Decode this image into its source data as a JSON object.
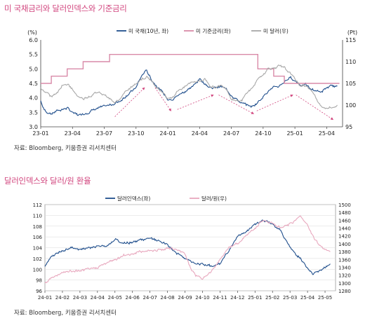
{
  "chart_data": [
    {
      "type": "line",
      "title": "미 국채금리와 달러인덱스와 기준금리",
      "source": "자료: Bloomberg, 키움증권 리서치센터",
      "y_left_unit": "(%)",
      "y_right_unit": "(Pt)",
      "y_left_ticks": [
        "6.0",
        "5.5",
        "5.0",
        "4.5",
        "4.0",
        "3.5",
        "3.0"
      ],
      "y_right_ticks": [
        "115",
        "110",
        "105",
        "100",
        "95"
      ],
      "ylim_left": [
        3.0,
        6.0
      ],
      "ylim_right": [
        95,
        115
      ],
      "x_ticks": [
        "23-01",
        "23-04",
        "23-07",
        "23-10",
        "24-01",
        "24-04",
        "24-07",
        "24-10",
        "25-01",
        "25-04"
      ],
      "xlim": [
        0,
        28.5
      ],
      "series": [
        {
          "name": "미 국채(10년, 좌)",
          "axis": "left",
          "color": "#1f4e8c",
          "style": "noisy",
          "x": [
            0,
            0.3,
            0.6,
            1,
            1.5,
            2,
            2.5,
            3,
            3.5,
            4,
            4.5,
            5,
            5.5,
            6,
            6.5,
            7,
            7.5,
            8,
            8.5,
            9,
            9.3,
            9.7,
            10,
            10.5,
            11,
            11.5,
            12,
            12.5,
            13,
            13.5,
            14,
            14.5,
            15,
            15.5,
            16,
            16.5,
            17,
            17.5,
            18,
            18.5,
            19,
            19.5,
            20,
            20.5,
            21,
            21.5,
            22,
            22.5,
            23,
            23.5,
            24,
            24.5,
            25,
            25.5,
            26,
            26.5,
            27,
            27.5,
            28
          ],
          "y": [
            3.9,
            3.6,
            3.5,
            3.45,
            3.55,
            3.6,
            3.65,
            3.5,
            3.4,
            3.45,
            3.5,
            3.6,
            3.65,
            3.7,
            3.75,
            3.8,
            3.9,
            4.05,
            4.2,
            4.35,
            4.6,
            4.85,
            4.95,
            4.6,
            4.4,
            4.2,
            3.95,
            3.95,
            4.1,
            4.2,
            4.3,
            4.45,
            4.65,
            4.5,
            4.35,
            4.35,
            4.4,
            4.3,
            4.1,
            3.95,
            3.8,
            3.75,
            3.7,
            3.85,
            4.05,
            4.25,
            4.35,
            4.4,
            4.55,
            4.7,
            4.6,
            4.45,
            4.45,
            4.3,
            4.25,
            4.2,
            4.35,
            4.4,
            4.4
          ]
        },
        {
          "name": "미 기준금리(좌)",
          "axis": "left",
          "color": "#d98aa8",
          "style": "step",
          "x": [
            0,
            1,
            1,
            2.5,
            2.5,
            4,
            4,
            6.5,
            6.5,
            20.5,
            20.5,
            22,
            22,
            23,
            23,
            28.2
          ],
          "y": [
            4.5,
            4.5,
            4.75,
            4.75,
            5.0,
            5.0,
            5.25,
            5.25,
            5.5,
            5.5,
            5.0,
            5.0,
            4.75,
            4.75,
            4.5,
            4.5
          ]
        },
        {
          "name": "미 달러(우)",
          "axis": "right",
          "color": "#a8a8a8",
          "style": "noisy",
          "x": [
            0,
            0.5,
            1,
            1.5,
            2,
            2.5,
            3,
            3.5,
            4,
            4.5,
            5,
            5.5,
            6,
            6.5,
            7,
            7.5,
            8,
            8.5,
            9,
            9.5,
            10,
            10.5,
            11,
            11.5,
            12,
            12.5,
            13,
            13.5,
            14,
            14.5,
            15,
            15.5,
            16,
            16.5,
            17,
            17.5,
            18,
            18.5,
            19,
            19.5,
            20,
            20.5,
            21,
            21.5,
            22,
            22.5,
            23,
            23.5,
            24,
            24.5,
            25,
            25.5,
            26,
            26.5,
            27,
            27.5,
            28
          ],
          "y": [
            104,
            103,
            102,
            102.5,
            104.5,
            105,
            103.5,
            102,
            101.5,
            102,
            102.5,
            103,
            102.5,
            101.5,
            100.5,
            101.5,
            103,
            104,
            105,
            106,
            106.5,
            105.5,
            104,
            103,
            101.5,
            102,
            103.5,
            104,
            105,
            105.5,
            105.5,
            106,
            104.5,
            104,
            104.5,
            104,
            101.5,
            101,
            101,
            103,
            104,
            106,
            107,
            108.5,
            108.5,
            109,
            108.5,
            107.5,
            106,
            104.5,
            104.5,
            103.5,
            101.5,
            99.8,
            99.2,
            99.5,
            100
          ]
        }
      ],
      "annotations": {
        "arrows_color": "#d2477f",
        "arrows": [
          {
            "x1": 7.0,
            "y1": 3.35,
            "x2": 9.8,
            "y2": 4.35
          },
          {
            "x1": 10.8,
            "y1": 4.35,
            "x2": 12.3,
            "y2": 3.55
          },
          {
            "x1": 12.9,
            "y1": 3.6,
            "x2": 16.3,
            "y2": 4.1
          },
          {
            "x1": 16.8,
            "y1": 4.1,
            "x2": 20.1,
            "y2": 3.45
          },
          {
            "x1": 20.4,
            "y1": 3.55,
            "x2": 23.8,
            "y2": 4.1
          },
          {
            "x1": 24.1,
            "y1": 4.1,
            "x2": 27.6,
            "y2": 3.25
          }
        ]
      }
    },
    {
      "type": "line",
      "title": "달러인덱스와 달러/원 환율",
      "source": "자료: Bloomberg, 키움증권 리서치센터",
      "y_left_ticks": [
        "112",
        "110",
        "108",
        "106",
        "104",
        "102",
        "100",
        "98",
        "96"
      ],
      "y_right_ticks": [
        "1500",
        "1480",
        "1460",
        "1440",
        "1420",
        "1400",
        "1380",
        "1360",
        "1340",
        "1320",
        "1300",
        "1280"
      ],
      "ylim_left": [
        96,
        112
      ],
      "ylim_right": [
        1280,
        1500
      ],
      "x_ticks": [
        "24-01",
        "24-02",
        "24-03",
        "24-04",
        "24-05",
        "24-06",
        "24-07",
        "24-08",
        "24-09",
        "24-10",
        "24-11",
        "24-12",
        "25-01",
        "25-02",
        "25-03",
        "25-04",
        "25-05"
      ],
      "xlim": [
        0,
        16.6
      ],
      "series": [
        {
          "name": "달러인덱스(좌)",
          "axis": "left",
          "color": "#1f4e8c",
          "style": "noisy",
          "x": [
            0,
            0.3,
            0.6,
            1,
            1.5,
            2,
            2.5,
            3,
            3.5,
            4,
            4.5,
            5,
            5.5,
            6,
            6.5,
            7,
            7.5,
            8,
            8.3,
            8.6,
            9,
            9.5,
            10,
            10.5,
            11,
            11.5,
            12,
            12.5,
            13,
            13.5,
            14,
            14.3,
            14.6,
            15,
            15.3,
            15.6,
            16,
            16.3
          ],
          "y": [
            100.5,
            102,
            102.8,
            103.5,
            104,
            103.8,
            104,
            104.3,
            104.2,
            105.5,
            104.8,
            105,
            105.5,
            105.7,
            105.2,
            104.5,
            103,
            102,
            101.5,
            101,
            101,
            100.5,
            101,
            103.5,
            106,
            107,
            108.3,
            109,
            108.5,
            107,
            104,
            103,
            102,
            100,
            99.2,
            99.5,
            100.5,
            101
          ]
        },
        {
          "name": "달러/원(우)",
          "axis": "right",
          "color": "#e8a8be",
          "style": "noisy",
          "x": [
            0,
            0.3,
            0.6,
            1,
            1.5,
            2,
            2.5,
            3,
            3.5,
            4,
            4.5,
            5,
            5.5,
            6,
            6.5,
            7,
            7.5,
            8,
            8.3,
            8.6,
            9,
            9.5,
            10,
            10.5,
            11,
            11.5,
            12,
            12.5,
            13,
            13.5,
            14,
            14.3,
            14.6,
            15,
            15.3,
            15.6,
            16,
            16.3
          ],
          "y": [
            1300,
            1310,
            1318,
            1325,
            1330,
            1330,
            1335,
            1340,
            1350,
            1360,
            1370,
            1375,
            1380,
            1383,
            1385,
            1388,
            1385,
            1375,
            1340,
            1320,
            1310,
            1330,
            1360,
            1390,
            1400,
            1420,
            1440,
            1460,
            1450,
            1440,
            1450,
            1460,
            1470,
            1450,
            1420,
            1400,
            1385,
            1380
          ]
        }
      ]
    }
  ]
}
